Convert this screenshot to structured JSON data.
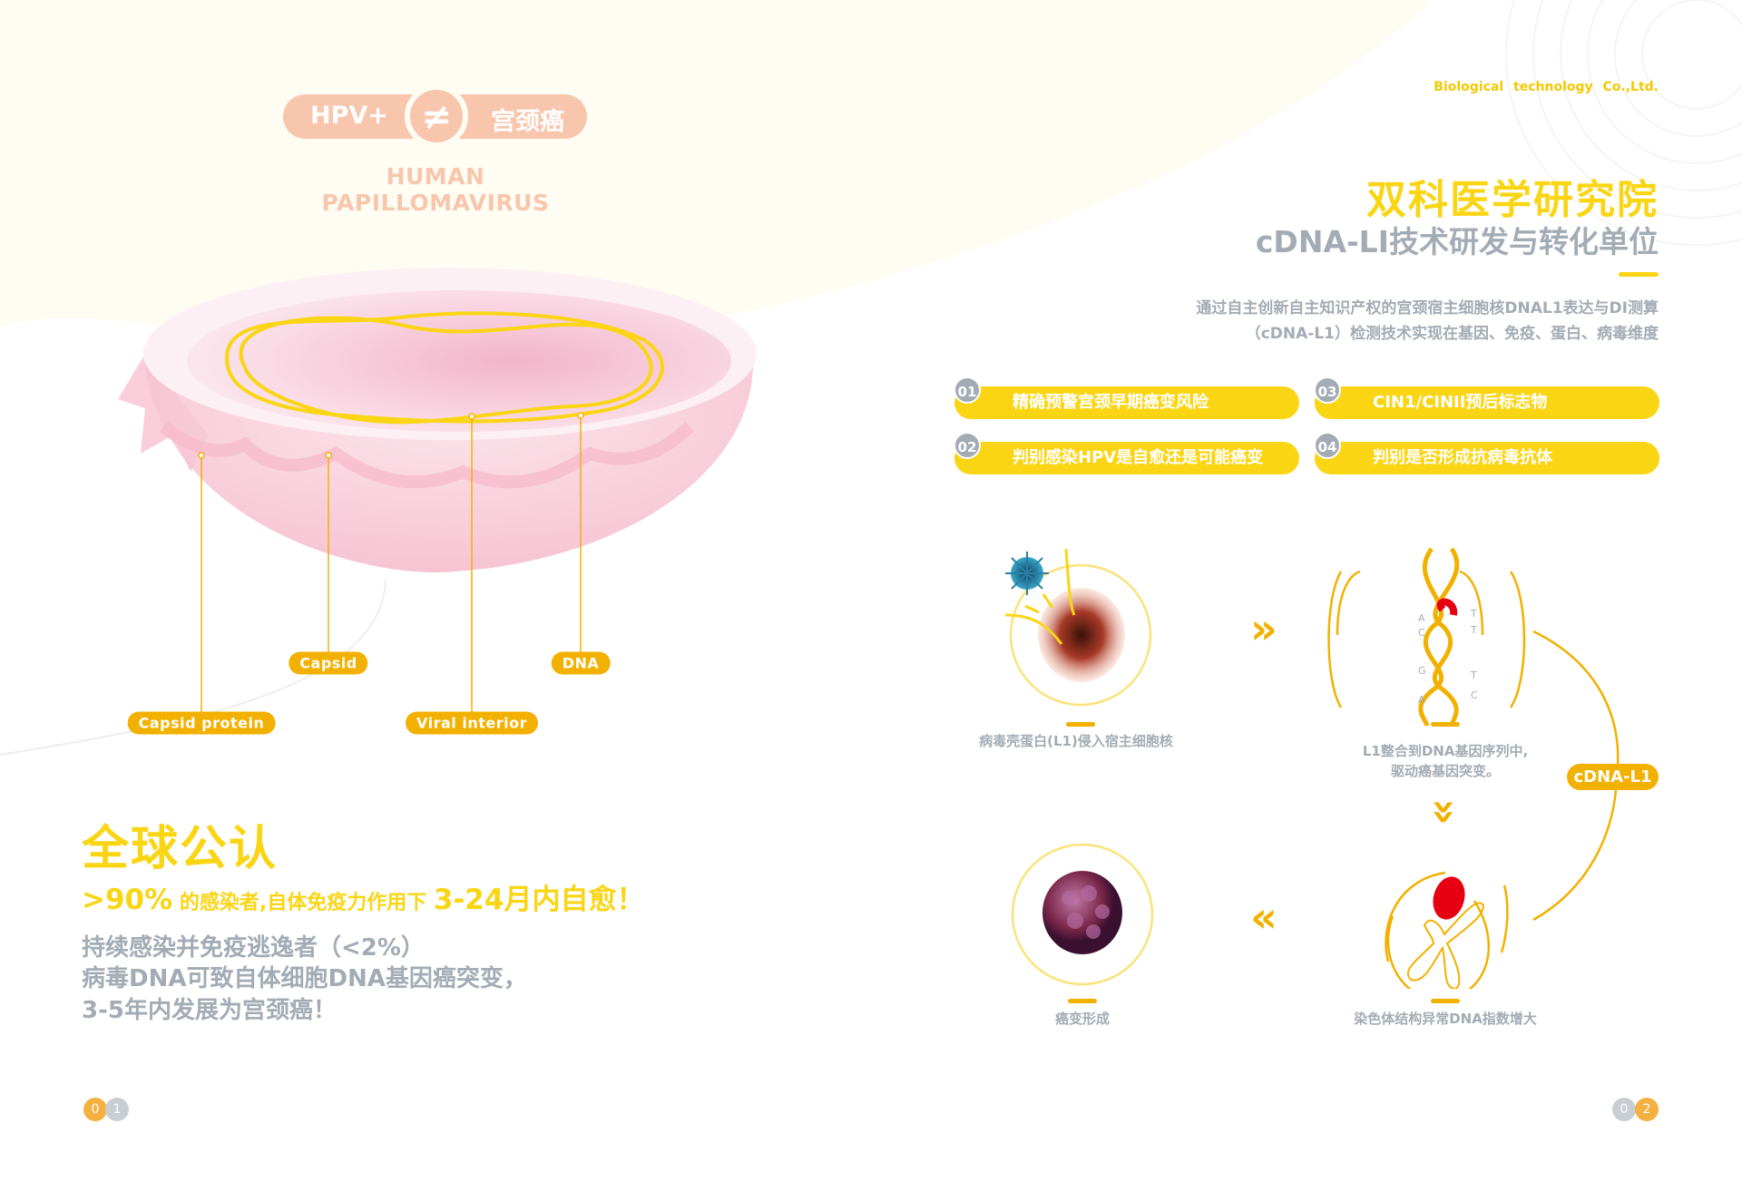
{
  "left_page": {
    "hpv_badge": {
      "left": "HPV+",
      "symbol": "≠",
      "right": "宫颈癌"
    },
    "subtitle": "HUMAN  PAPILLOMAVIRUS",
    "labels": {
      "capsid": "Capsid",
      "dna": "DNA",
      "capsid_protein": "Capsid  protein",
      "viral_interior": "Viral  interior"
    },
    "headline": "全球公认",
    "stat_line": {
      "percent": ">90%",
      "middle": " 的感染者,自体免疫力作用下 ",
      "result": "3-24月内自愈！"
    },
    "persistent_lines": [
      "持续感染并免疫逃逸者（<2%）",
      "病毒DNA可致自体细胞DNA基因癌突变，",
      "3-5年内发展为宫颈癌！"
    ],
    "page_number": [
      "0",
      "1"
    ]
  },
  "right_page": {
    "company": "Biological  technology Co.,Ltd.",
    "title": "双科医学研究院",
    "subtitle": "cDNA-LI技术研发与转化单位",
    "description": [
      "通过自主创新自主知识产权的宫颈宿主细胞核DNAL1表达与DI测算",
      "（cDNA-L1）检测技术实现在基因、免疫、蛋白、病毒维度"
    ],
    "features": [
      {
        "num": "01",
        "text": "精确预警宫颈早期癌变风险"
      },
      {
        "num": "02",
        "text": "判别感染HPV是自愈还是可能癌变"
      },
      {
        "num": "03",
        "text": "CIN1/CINII预后标志物"
      },
      {
        "num": "04",
        "text": "判别是否形成抗病毒抗体"
      }
    ],
    "steps": [
      {
        "caption": "病毒壳蛋白(L1)侵入宿主细胞核"
      },
      {
        "caption": "L1整合到DNA基因序列中,",
        "caption2": "驱动癌基因突变。"
      },
      {
        "caption": "染色体结构异常DNA指数增大"
      },
      {
        "caption": "癌变形成"
      }
    ],
    "dna_bases": {
      "left": [
        "A",
        "C",
        "G",
        "A"
      ],
      "right": [
        "T",
        "T",
        "T",
        "C"
      ]
    },
    "cycle_badge": "cDNA-L1",
    "arrows": {
      "right": "»",
      "down": "»",
      "left": "«"
    },
    "page_number": [
      "0",
      "2"
    ]
  },
  "colors": {
    "yellow": "#fad514",
    "gold": "#f2b100",
    "gray": "#a3acb5",
    "peach": "#f8c6ad",
    "pink": "#f7c9d6",
    "red": "#e60012"
  }
}
